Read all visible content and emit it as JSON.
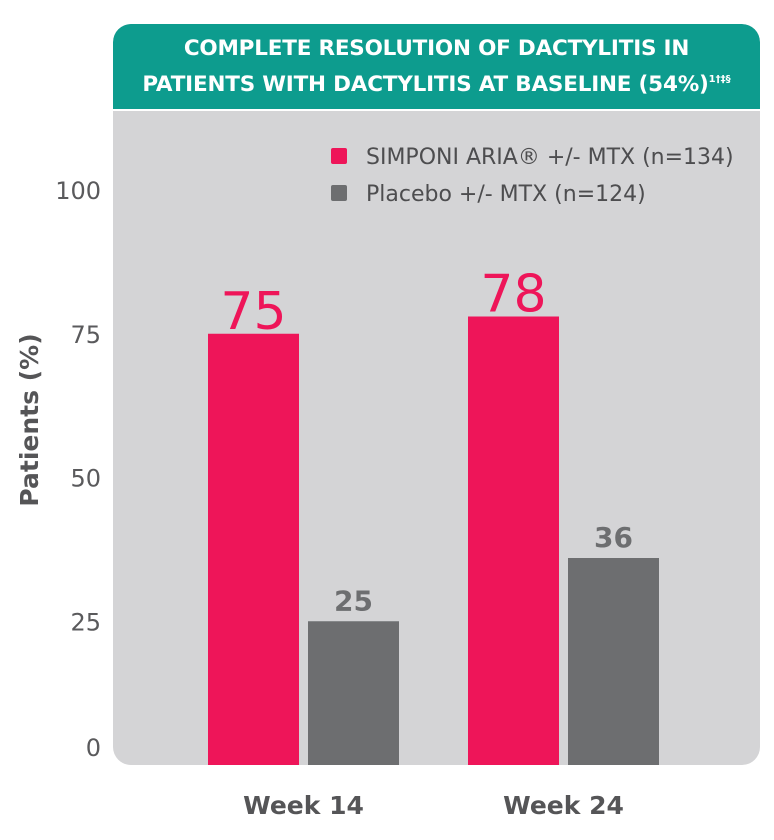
{
  "chart_data": {
    "type": "bar",
    "title": "COMPLETE RESOLUTION OF DACTYLITIS IN",
    "title_line2": "PATIENTS WITH DACTYLITIS AT BASELINE (54%)",
    "title_footnote_marks": "1†‡§",
    "ylabel": "Patients (%)",
    "xlabel": "",
    "categories": [
      "Week 14",
      "Week 24"
    ],
    "ylim": [
      0,
      100
    ],
    "yticks": [
      0,
      25,
      50,
      75,
      100
    ],
    "grid": false,
    "legend_position": "top-right",
    "series": [
      {
        "name": "SIMPONI ARIA® +/- MTX (n=134)",
        "values": [
          75,
          78
        ],
        "color": "#ee1559"
      },
      {
        "name": "Placebo +/- MTX (n=124)",
        "values": [
          25,
          36
        ],
        "color": "#6d6e70"
      }
    ]
  },
  "colors": {
    "banner": "#0d9c8e",
    "panel": "#d4d4d6",
    "primary": "#ee1559",
    "placebo": "#6d6e70"
  }
}
